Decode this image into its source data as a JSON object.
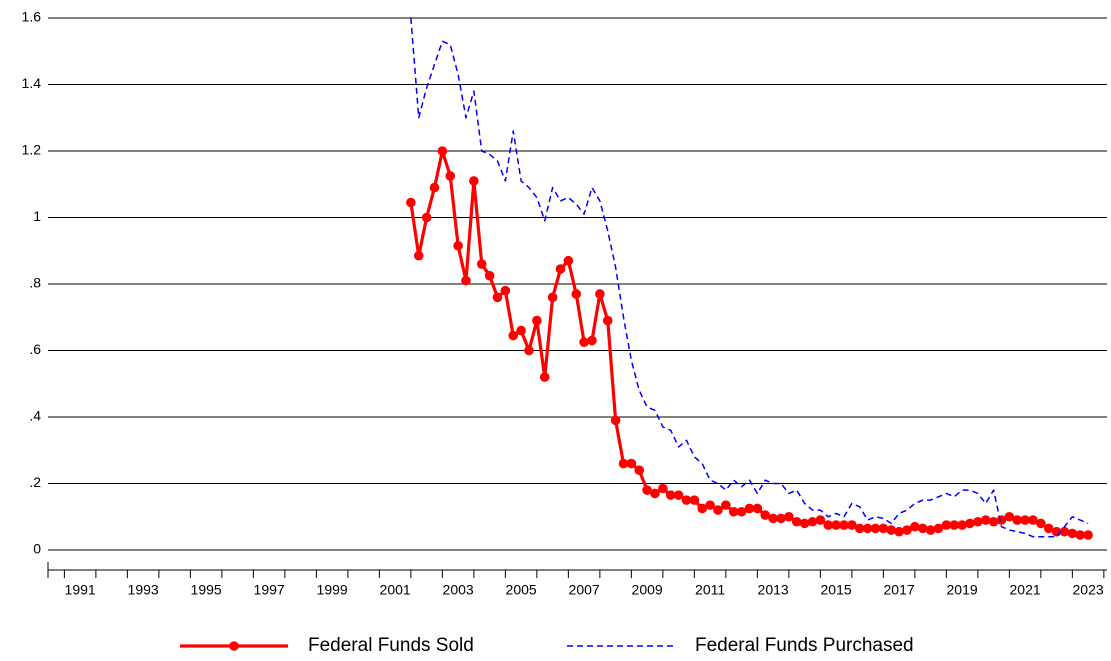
{
  "chart_data": {
    "type": "line",
    "x": [
      2002,
      2002.25,
      2002.5,
      2002.75,
      2003,
      2003.25,
      2003.5,
      2003.75,
      2004,
      2004.25,
      2004.5,
      2004.75,
      2005,
      2005.25,
      2005.5,
      2005.75,
      2006,
      2006.25,
      2006.5,
      2006.75,
      2007,
      2007.25,
      2007.5,
      2007.75,
      2008,
      2008.25,
      2008.5,
      2008.75,
      2009,
      2009.25,
      2009.5,
      2009.75,
      2010,
      2010.25,
      2010.5,
      2010.75,
      2011,
      2011.25,
      2011.5,
      2011.75,
      2012,
      2012.25,
      2012.5,
      2012.75,
      2013,
      2013.25,
      2013.5,
      2013.75,
      2014,
      2014.25,
      2014.5,
      2014.75,
      2015,
      2015.25,
      2015.5,
      2015.75,
      2016,
      2016.25,
      2016.5,
      2016.75,
      2017,
      2017.25,
      2017.5,
      2017.75,
      2018,
      2018.25,
      2018.5,
      2018.75,
      2019,
      2019.25,
      2019.5,
      2019.75,
      2020,
      2020.25,
      2020.5,
      2020.75,
      2021,
      2021.25,
      2021.5,
      2021.75,
      2022,
      2022.25,
      2022.5,
      2022.75,
      2023,
      2023.25,
      2023.5
    ],
    "series": [
      {
        "name": "Federal Funds Sold",
        "color": "#ff0000",
        "markers": true,
        "values": [
          1.045,
          0.885,
          1.0,
          1.09,
          1.2,
          1.125,
          0.915,
          0.81,
          1.11,
          0.86,
          0.825,
          0.76,
          0.78,
          0.645,
          0.66,
          0.6,
          0.69,
          0.52,
          0.76,
          0.845,
          0.87,
          0.77,
          0.625,
          0.63,
          0.77,
          0.69,
          0.39,
          0.26,
          0.26,
          0.24,
          0.18,
          0.17,
          0.185,
          0.165,
          0.165,
          0.15,
          0.15,
          0.125,
          0.135,
          0.12,
          0.135,
          0.115,
          0.115,
          0.125,
          0.125,
          0.105,
          0.095,
          0.095,
          0.1,
          0.085,
          0.08,
          0.085,
          0.09,
          0.075,
          0.075,
          0.075,
          0.075,
          0.065,
          0.065,
          0.065,
          0.065,
          0.06,
          0.055,
          0.06,
          0.07,
          0.065,
          0.06,
          0.065,
          0.075,
          0.075,
          0.075,
          0.08,
          0.085,
          0.09,
          0.085,
          0.09,
          0.1,
          0.09,
          0.09,
          0.09,
          0.08,
          0.065,
          0.055,
          0.055,
          0.05,
          0.045,
          0.045
        ]
      },
      {
        "name": "Federal Funds Purchased",
        "color": "#0000ff",
        "dashed": true,
        "values": [
          1.6,
          1.3,
          1.39,
          1.46,
          1.53,
          1.52,
          1.43,
          1.3,
          1.38,
          1.2,
          1.19,
          1.17,
          1.11,
          1.26,
          1.11,
          1.09,
          1.06,
          0.99,
          1.09,
          1.05,
          1.06,
          1.04,
          1.01,
          1.09,
          1.05,
          0.96,
          0.85,
          0.7,
          0.57,
          0.48,
          0.43,
          0.42,
          0.37,
          0.36,
          0.31,
          0.33,
          0.28,
          0.26,
          0.21,
          0.2,
          0.18,
          0.21,
          0.19,
          0.21,
          0.17,
          0.21,
          0.2,
          0.2,
          0.17,
          0.18,
          0.14,
          0.12,
          0.12,
          0.1,
          0.11,
          0.1,
          0.14,
          0.13,
          0.09,
          0.1,
          0.095,
          0.08,
          0.11,
          0.12,
          0.14,
          0.15,
          0.15,
          0.16,
          0.17,
          0.16,
          0.18,
          0.18,
          0.17,
          0.14,
          0.18,
          0.07,
          0.06,
          0.055,
          0.05,
          0.04,
          0.04,
          0.04,
          0.04,
          0.07,
          0.1,
          0.09,
          0.08
        ]
      }
    ],
    "xlim": [
      1990.48,
      2024.1
    ],
    "xticks": [
      {
        "value": 1991.5,
        "label": "1991"
      },
      {
        "value": 1993.5,
        "label": "1993"
      },
      {
        "value": 1995.5,
        "label": "1995"
      },
      {
        "value": 1997.5,
        "label": "1997"
      },
      {
        "value": 1999.5,
        "label": "1999"
      },
      {
        "value": 2001.5,
        "label": "2001"
      },
      {
        "value": 2003.5,
        "label": "2003"
      },
      {
        "value": 2005.5,
        "label": "2005"
      },
      {
        "value": 2007.5,
        "label": "2007"
      },
      {
        "value": 2009.5,
        "label": "2009"
      },
      {
        "value": 2011.5,
        "label": "2011"
      },
      {
        "value": 2013.5,
        "label": "2013"
      },
      {
        "value": 2015.5,
        "label": "2015"
      },
      {
        "value": 2017.5,
        "label": "2017"
      },
      {
        "value": 2019.5,
        "label": "2019"
      },
      {
        "value": 2021.5,
        "label": "2021"
      },
      {
        "value": 2023.5,
        "label": "2023"
      }
    ],
    "ylim": [
      0,
      1.6
    ],
    "yticks": [
      0,
      {
        "value": 0.2,
        "label": ".2"
      },
      {
        "value": 0.4,
        "label": ".4"
      },
      {
        "value": 0.6,
        "label": ".6"
      },
      {
        "value": 0.8,
        "label": ".8"
      },
      1,
      1.2,
      1.4,
      1.6
    ],
    "grid": true,
    "legend": "bottom"
  }
}
